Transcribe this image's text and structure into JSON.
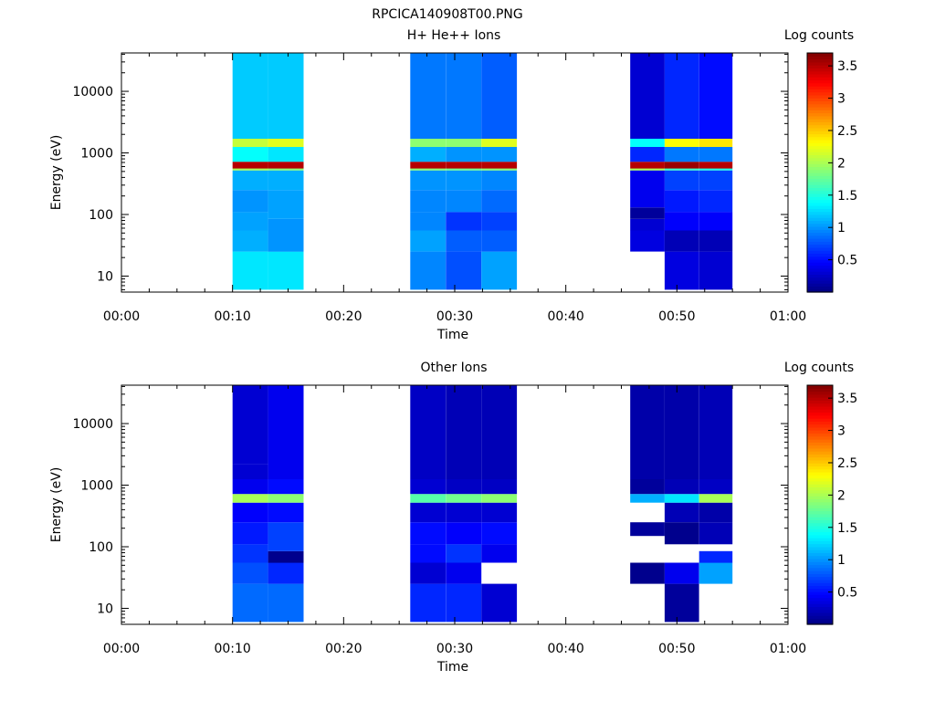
{
  "page_title": "RPCICA140908T00.PNG",
  "colormap": {
    "stops": [
      "#00007f",
      "#0000ff",
      "#007fff",
      "#00ffff",
      "#7fff7f",
      "#ffff00",
      "#ff7f00",
      "#ff0000",
      "#7f0000"
    ],
    "min": 0.0,
    "max": 3.7
  },
  "chart_data": [
    {
      "type": "heatmap",
      "title": "H+ He++ Ions",
      "xlabel": "Time",
      "ylabel": "Energy (eV)",
      "x_ticks": [
        "00:00",
        "00:10",
        "00:20",
        "00:30",
        "00:40",
        "00:50",
        "01:00"
      ],
      "xlim_minutes": [
        0,
        60
      ],
      "y_scale": "log",
      "ylim": [
        5.5,
        42000
      ],
      "y_ticks": [
        "10",
        "100",
        "1000",
        "10000"
      ],
      "colorbar_label": "Log counts",
      "colorbar_ticks": [
        "0.5",
        "1",
        "1.5",
        "2",
        "2.5",
        "3",
        "3.5"
      ],
      "columns": [
        {
          "t0": 10.0,
          "t1": 13.2,
          "bins": [
            [
              6,
              25,
              1.3
            ],
            [
              25,
              55,
              1.1
            ],
            [
              55,
              110,
              1.05
            ],
            [
              110,
              250,
              1.0
            ],
            [
              250,
              520,
              1.1
            ],
            [
              520,
              560,
              2.0
            ],
            [
              560,
              720,
              3.5
            ],
            [
              720,
              1250,
              1.4
            ],
            [
              1250,
              1700,
              2.1
            ],
            [
              1700,
              42000,
              1.2
            ]
          ]
        },
        {
          "t0": 13.2,
          "t1": 16.4,
          "bins": [
            [
              6,
              25,
              1.3
            ],
            [
              25,
              85,
              1.0
            ],
            [
              85,
              250,
              1.05
            ],
            [
              250,
              520,
              1.1
            ],
            [
              520,
              560,
              1.9
            ],
            [
              560,
              720,
              3.5
            ],
            [
              720,
              1250,
              1.3
            ],
            [
              1250,
              1700,
              2.2
            ],
            [
              1700,
              42000,
              1.2
            ]
          ]
        },
        {
          "t0": 26.0,
          "t1": 29.2,
          "bins": [
            [
              6,
              25,
              0.95
            ],
            [
              25,
              55,
              1.05
            ],
            [
              55,
              110,
              0.95
            ],
            [
              110,
              250,
              0.95
            ],
            [
              250,
              520,
              1.0
            ],
            [
              520,
              560,
              1.9
            ],
            [
              560,
              720,
              3.5
            ],
            [
              720,
              1250,
              1.1
            ],
            [
              1250,
              1700,
              1.9
            ],
            [
              1700,
              42000,
              0.9
            ]
          ]
        },
        {
          "t0": 29.2,
          "t1": 32.4,
          "bins": [
            [
              6,
              25,
              0.75
            ],
            [
              25,
              55,
              0.8
            ],
            [
              55,
              110,
              0.65
            ],
            [
              110,
              250,
              0.95
            ],
            [
              250,
              520,
              1.0
            ],
            [
              520,
              560,
              1.8
            ],
            [
              560,
              720,
              3.5
            ],
            [
              720,
              1250,
              1.0
            ],
            [
              1250,
              1700,
              1.9
            ],
            [
              1700,
              42000,
              0.9
            ]
          ]
        },
        {
          "t0": 32.4,
          "t1": 35.6,
          "bins": [
            [
              6,
              25,
              1.05
            ],
            [
              25,
              55,
              0.8
            ],
            [
              55,
              110,
              0.7
            ],
            [
              110,
              250,
              0.85
            ],
            [
              250,
              520,
              0.95
            ],
            [
              520,
              560,
              1.9
            ],
            [
              560,
              720,
              3.5
            ],
            [
              720,
              1250,
              1.0
            ],
            [
              1250,
              1700,
              2.2
            ],
            [
              1700,
              42000,
              0.8
            ]
          ]
        },
        {
          "t0": 45.8,
          "t1": 48.9,
          "bins": [
            [
              25,
              55,
              0.35
            ],
            [
              55,
              85,
              0.3
            ],
            [
              85,
              130,
              0.1
            ],
            [
              130,
              520,
              0.4
            ],
            [
              520,
              560,
              2.0
            ],
            [
              560,
              720,
              3.5
            ],
            [
              720,
              1250,
              0.6
            ],
            [
              1250,
              1700,
              1.4
            ],
            [
              1700,
              42000,
              0.3
            ]
          ]
        },
        {
          "t0": 48.9,
          "t1": 52.0,
          "bins": [
            [
              6,
              25,
              0.35
            ],
            [
              25,
              55,
              0.2
            ],
            [
              55,
              110,
              0.45
            ],
            [
              110,
              250,
              0.55
            ],
            [
              250,
              520,
              0.7
            ],
            [
              520,
              560,
              1.6
            ],
            [
              560,
              720,
              3.6
            ],
            [
              720,
              1250,
              0.9
            ],
            [
              1250,
              1700,
              2.3
            ],
            [
              1700,
              42000,
              0.6
            ]
          ]
        },
        {
          "t0": 52.0,
          "t1": 55.0,
          "bins": [
            [
              6,
              25,
              0.3
            ],
            [
              25,
              55,
              0.2
            ],
            [
              55,
              110,
              0.45
            ],
            [
              110,
              250,
              0.6
            ],
            [
              250,
              520,
              0.7
            ],
            [
              520,
              560,
              1.5
            ],
            [
              560,
              720,
              3.5
            ],
            [
              720,
              1250,
              0.9
            ],
            [
              1250,
              1700,
              2.4
            ],
            [
              1700,
              42000,
              0.5
            ]
          ]
        }
      ]
    },
    {
      "type": "heatmap",
      "title": "Other Ions",
      "xlabel": "Time",
      "ylabel": "Energy (eV)",
      "x_ticks": [
        "00:00",
        "00:10",
        "00:20",
        "00:30",
        "00:40",
        "00:50",
        "01:00"
      ],
      "xlim_minutes": [
        0,
        60
      ],
      "y_scale": "log",
      "ylim": [
        5.5,
        42000
      ],
      "y_ticks": [
        "10",
        "100",
        "1000",
        "10000"
      ],
      "colorbar_label": "Log counts",
      "colorbar_ticks": [
        "0.5",
        "1",
        "1.5",
        "2",
        "2.5",
        "3",
        "3.5"
      ],
      "columns": [
        {
          "t0": 10.0,
          "t1": 13.2,
          "bins": [
            [
              6,
              25,
              0.85
            ],
            [
              25,
              55,
              0.75
            ],
            [
              55,
              110,
              0.65
            ],
            [
              110,
              250,
              0.55
            ],
            [
              250,
              520,
              0.45
            ],
            [
              520,
              720,
              2.0
            ],
            [
              720,
              1250,
              0.4
            ],
            [
              1250,
              2200,
              0.3
            ],
            [
              2200,
              42000,
              0.3
            ]
          ]
        },
        {
          "t0": 13.2,
          "t1": 16.4,
          "bins": [
            [
              6,
              25,
              0.85
            ],
            [
              25,
              55,
              0.6
            ],
            [
              55,
              85,
              0.05
            ],
            [
              85,
              250,
              0.7
            ],
            [
              250,
              520,
              0.5
            ],
            [
              520,
              720,
              1.9
            ],
            [
              720,
              1250,
              0.5
            ],
            [
              1250,
              42000,
              0.4
            ]
          ]
        },
        {
          "t0": 26.0,
          "t1": 29.2,
          "bins": [
            [
              6,
              25,
              0.6
            ],
            [
              25,
              55,
              0.3
            ],
            [
              55,
              110,
              0.5
            ],
            [
              110,
              250,
              0.5
            ],
            [
              250,
              520,
              0.3
            ],
            [
              520,
              720,
              1.7
            ],
            [
              720,
              1250,
              0.3
            ],
            [
              1250,
              42000,
              0.25
            ]
          ]
        },
        {
          "t0": 29.2,
          "t1": 32.4,
          "bins": [
            [
              6,
              25,
              0.6
            ],
            [
              25,
              55,
              0.4
            ],
            [
              55,
              110,
              0.65
            ],
            [
              110,
              250,
              0.45
            ],
            [
              250,
              520,
              0.3
            ],
            [
              520,
              720,
              1.8
            ],
            [
              720,
              1250,
              0.25
            ],
            [
              1250,
              42000,
              0.2
            ]
          ]
        },
        {
          "t0": 32.4,
          "t1": 35.6,
          "bins": [
            [
              6,
              25,
              0.3
            ],
            [
              55,
              110,
              0.4
            ],
            [
              110,
              250,
              0.5
            ],
            [
              250,
              520,
              0.3
            ],
            [
              520,
              720,
              1.9
            ],
            [
              720,
              1250,
              0.25
            ],
            [
              1250,
              42000,
              0.2
            ]
          ]
        },
        {
          "t0": 45.8,
          "t1": 48.9,
          "bins": [
            [
              25,
              55,
              0.05
            ],
            [
              150,
              250,
              0.1
            ],
            [
              520,
              720,
              1.1
            ],
            [
              720,
              1250,
              0.1
            ],
            [
              1250,
              42000,
              0.15
            ]
          ]
        },
        {
          "t0": 48.9,
          "t1": 52.0,
          "bins": [
            [
              6,
              25,
              0.1
            ],
            [
              25,
              55,
              0.4
            ],
            [
              110,
              250,
              0.05
            ],
            [
              250,
              520,
              0.2
            ],
            [
              520,
              720,
              1.3
            ],
            [
              720,
              1250,
              0.2
            ],
            [
              1250,
              42000,
              0.15
            ]
          ]
        },
        {
          "t0": 52.0,
          "t1": 55.0,
          "bins": [
            [
              25,
              55,
              1.05
            ],
            [
              55,
              85,
              0.6
            ],
            [
              110,
              250,
              0.2
            ],
            [
              250,
              520,
              0.15
            ],
            [
              520,
              720,
              2.0
            ],
            [
              720,
              1250,
              0.25
            ],
            [
              1250,
              42000,
              0.2
            ]
          ]
        }
      ]
    }
  ]
}
